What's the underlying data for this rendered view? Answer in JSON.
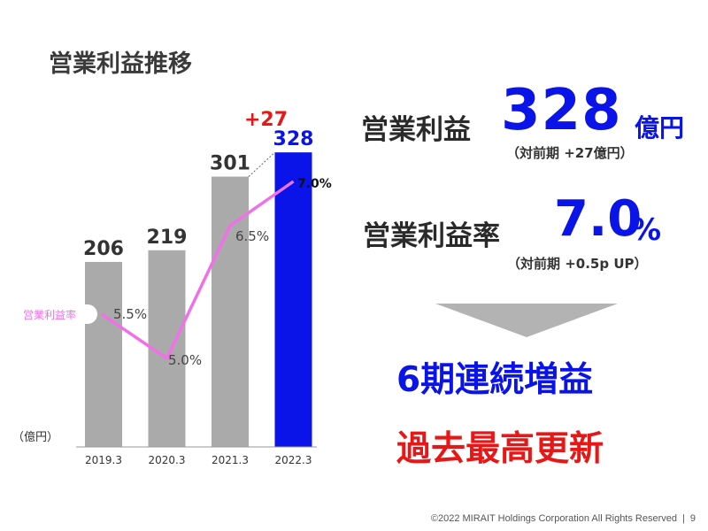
{
  "title": "営業利益推移",
  "chart_data": {
    "type": "bar",
    "categories": [
      "2019.3",
      "2020.3",
      "2021.3",
      "2022.3"
    ],
    "values": [
      206,
      219,
      301,
      328
    ],
    "unit_label": "（億円）",
    "value_labels": [
      "206",
      "219",
      "301",
      "328"
    ],
    "ylim": [
      0,
      340
    ],
    "bar_colors": [
      "#aaaaaa",
      "#aaaaaa",
      "#aaaaaa",
      "#0a14e8"
    ],
    "highlight_color": "#0a14e8",
    "increase_label": "+27",
    "increase_color": "#e81717",
    "line_series": {
      "name": "営業利益率",
      "values": [
        5.5,
        5.0,
        6.5,
        7.0
      ],
      "labels": [
        "5.5%",
        "5.0%",
        "6.5%",
        "7.0%"
      ],
      "range": [
        4.4,
        7.6
      ],
      "color": "#f070e8"
    }
  },
  "stats": {
    "profit_label": "営業利益",
    "profit_value": "328",
    "profit_unit": "億円",
    "profit_sub": "（対前期 +27億円）",
    "margin_label": "営業利益率",
    "margin_value": "7.0",
    "margin_unit": "%",
    "margin_sub": "（対前期 +0.5p UP）"
  },
  "streak_text": "6期連続増益",
  "record_text": "過去最高更新",
  "footer": {
    "copyright": "©2022 MIRAIT Holdings Corporation All Rights Reserved",
    "separator": "|",
    "page_number": "9"
  }
}
